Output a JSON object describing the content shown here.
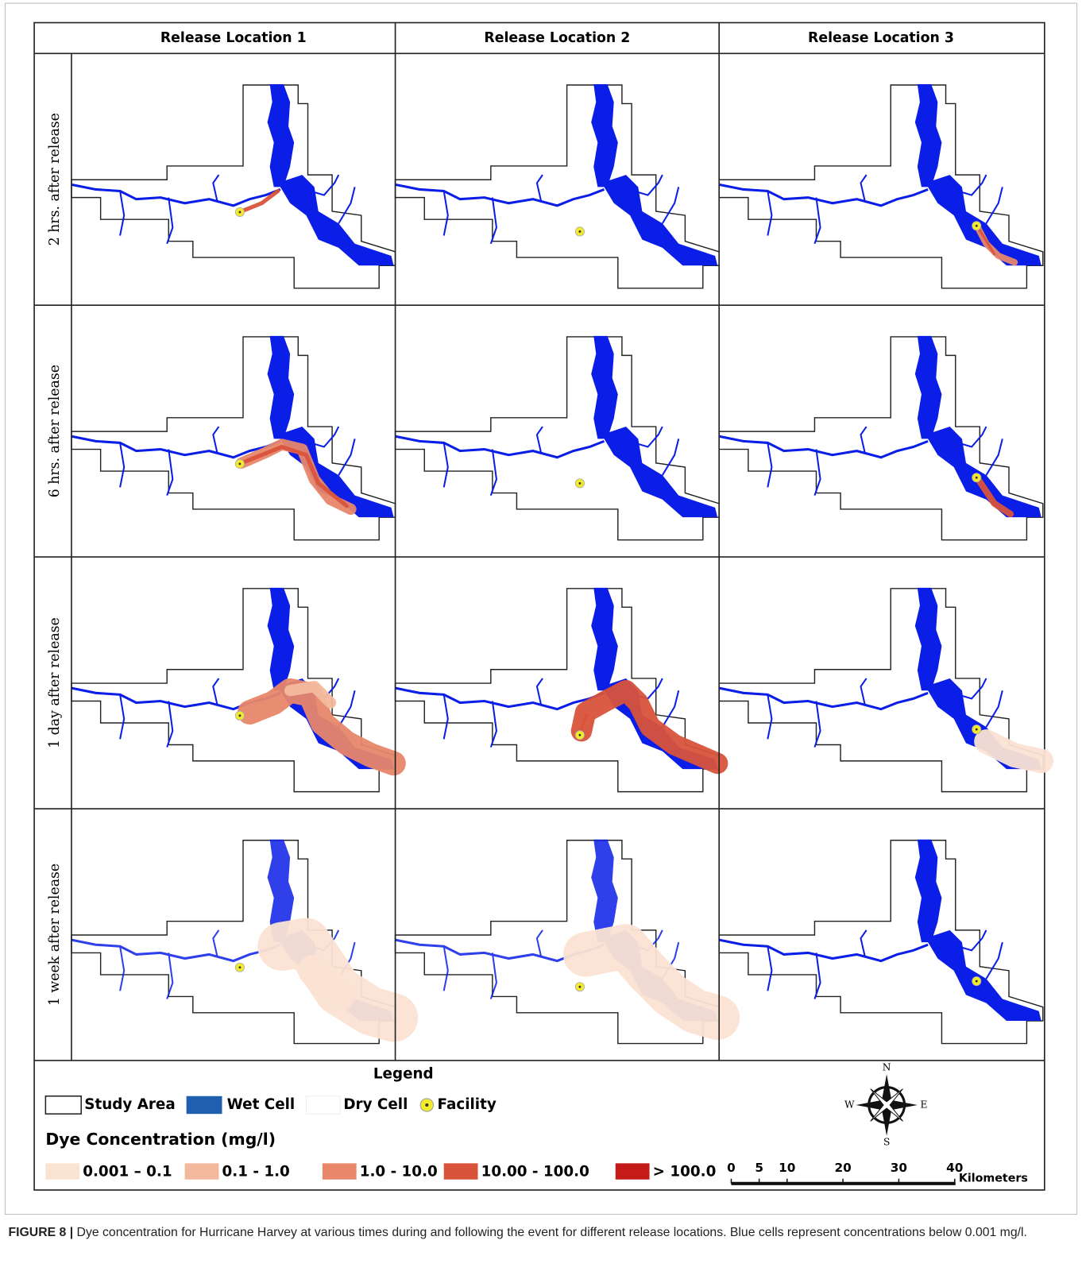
{
  "column_headers": [
    "Release Location 1",
    "Release Location 2",
    "Release Location 3"
  ],
  "row_labels": [
    "2 hrs. after release",
    "6 hrs. after release",
    "1 day after release",
    "1 week after release"
  ],
  "legend": {
    "title": "Legend",
    "items": [
      {
        "label": "Study Area"
      },
      {
        "label": "Wet Cell",
        "color": "#1f5fb0"
      },
      {
        "label": "Dry Cell"
      },
      {
        "label": "Facility",
        "color": "#f2ea2a"
      }
    ],
    "dye_title": "Dye Concentration (mg/l)",
    "dye_classes": [
      {
        "label": "0.001 – 0.1",
        "color": "#fbe3d3"
      },
      {
        "label": "0.1 - 1.0",
        "color": "#f3b99d"
      },
      {
        "label": "1.0 - 10.0",
        "color": "#e8876a"
      },
      {
        "label": "10.00 - 100.0",
        "color": "#d9533b"
      },
      {
        "label": "> 100.0",
        "color": "#c41a1a"
      }
    ]
  },
  "compass": [
    "N",
    "E",
    "S",
    "W"
  ],
  "scale": {
    "ticks": [
      0,
      5,
      10,
      20,
      30,
      40
    ],
    "unit": "Kilometers"
  },
  "caption": {
    "label": "FIGURE 8 |",
    "text": "Dye concentration for Hurricane Harvey at various times during and following the event for different release locations. Blue cells represent concentrations below 0.001 mg/l."
  }
}
